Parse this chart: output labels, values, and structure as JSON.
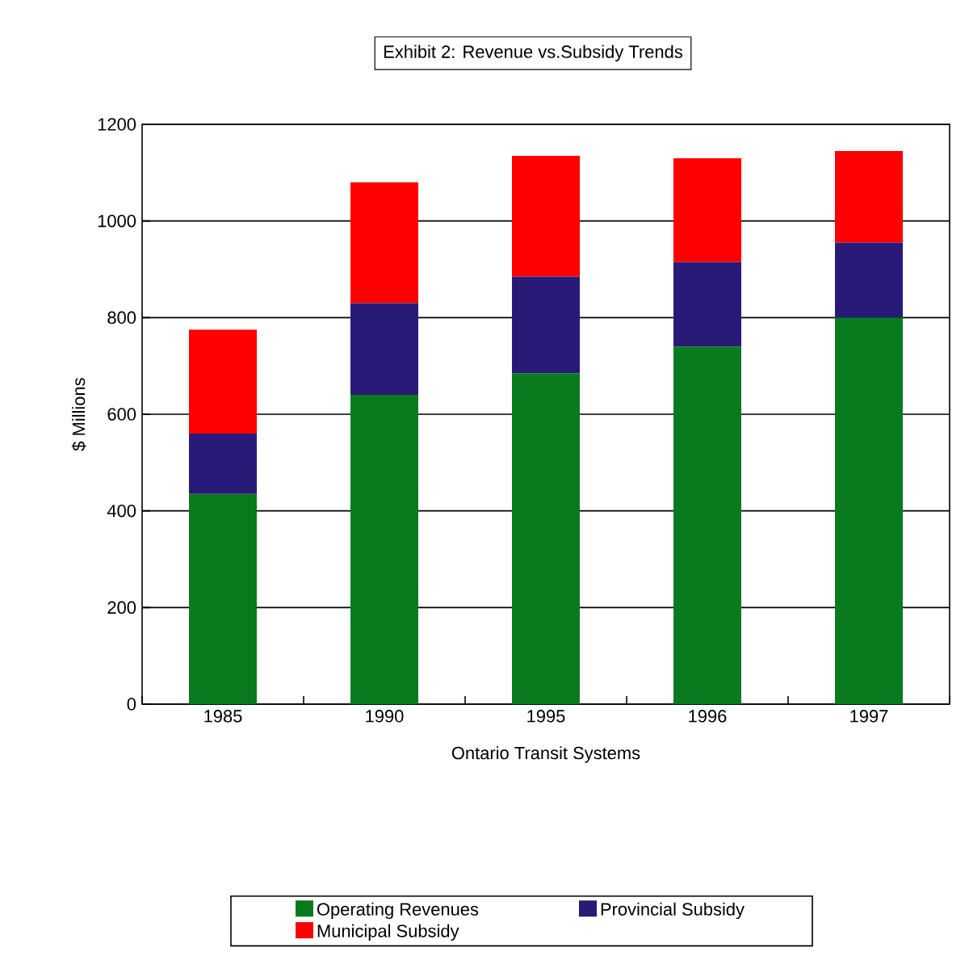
{
  "chart_data": {
    "type": "bar",
    "title": "Exhibit 2: Revenue vs.Subsidy Trends",
    "xlabel": "Ontario Transit Systems",
    "ylabel": "$ Millions",
    "categories": [
      "1985",
      "1990",
      "1995",
      "1996",
      "1997"
    ],
    "stacked": true,
    "series": [
      {
        "name": "Operating Revenues",
        "color": "#0a7a1e",
        "values": [
          435,
          640,
          685,
          740,
          800
        ]
      },
      {
        "name": "Provincial Subsidy",
        "color": "#2a1a78",
        "values": [
          125,
          190,
          200,
          175,
          155
        ]
      },
      {
        "name": "Municipal Subsidy",
        "color": "#ff0000",
        "values": [
          215,
          250,
          250,
          215,
          190
        ]
      }
    ],
    "ylim": [
      0,
      1200
    ],
    "yticks": [
      0,
      200,
      400,
      600,
      800,
      1000,
      1200
    ],
    "grid": "y",
    "legend": "bottom"
  }
}
